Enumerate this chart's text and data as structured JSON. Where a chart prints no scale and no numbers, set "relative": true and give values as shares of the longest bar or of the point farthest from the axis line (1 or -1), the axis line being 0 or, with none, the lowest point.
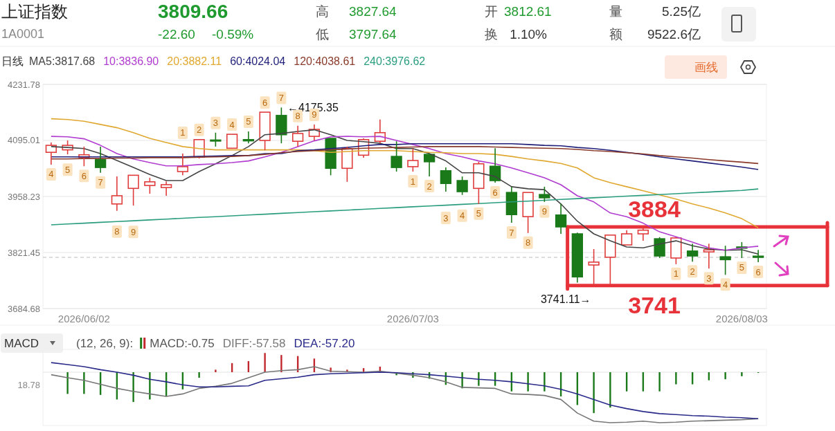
{
  "chart_data": [
    {
      "type": "candlestick",
      "title": "上证指数",
      "subtitle": "1A0001",
      "categories": [
        null,
        null,
        "2026/06/02",
        null,
        null,
        null,
        null,
        null,
        null,
        null,
        null,
        null,
        null,
        null,
        null,
        null,
        null,
        null,
        null,
        null,
        null,
        null,
        "2026/07/03",
        null,
        null,
        null,
        null,
        null,
        null,
        null,
        null,
        null,
        null,
        null,
        null,
        null,
        null,
        null,
        null,
        null,
        null,
        null,
        "2026/08/03",
        null
      ],
      "ohlc": [
        [
          4066,
          4090,
          4036,
          4083
        ],
        [
          4072,
          4095,
          4061,
          4083
        ],
        [
          4053,
          4080,
          4032,
          4060
        ],
        [
          4048,
          4080,
          4016,
          4029
        ],
        [
          3940,
          4007,
          3923,
          3960
        ],
        [
          3978,
          4010,
          3936,
          4010
        ],
        [
          3985,
          4004,
          3965,
          3994
        ],
        [
          3980,
          3995,
          3960,
          3987
        ],
        [
          4019,
          4063,
          4010,
          4031
        ],
        [
          4054,
          4097,
          4051,
          4097
        ],
        [
          4096,
          4114,
          4080,
          4094
        ],
        [
          4076,
          4110,
          4075,
          4110
        ],
        [
          4097,
          4117,
          4088,
          4094
        ],
        [
          4095,
          4164,
          4071,
          4164
        ],
        [
          4156,
          4175.35,
          4088,
          4109
        ],
        [
          4093,
          4131,
          4080,
          4112
        ],
        [
          4105,
          4134,
          4095,
          4122
        ],
        [
          4100,
          4100,
          4010,
          4027
        ],
        [
          4027,
          4080,
          3994,
          4075
        ],
        [
          4059,
          4100,
          4053,
          4097
        ],
        [
          4093,
          4146,
          4088,
          4114
        ],
        [
          4056,
          4093,
          4019,
          4029
        ],
        [
          4031,
          4075,
          4019,
          4046
        ],
        [
          4061,
          4063,
          4007,
          4043
        ],
        [
          4021,
          4029,
          3970,
          3990
        ],
        [
          3997,
          4007,
          3962,
          3970
        ],
        [
          3978,
          4043,
          3940,
          4038
        ],
        [
          4032,
          4076,
          3992,
          3997
        ],
        [
          3968,
          3982,
          3894,
          3914
        ],
        [
          3909,
          3968,
          3869,
          3968
        ],
        [
          3963,
          3982,
          3945,
          3955
        ],
        [
          3913,
          3941,
          3867,
          3884
        ],
        [
          3867,
          3870,
          3748,
          3762
        ],
        [
          3791,
          3830,
          3741.11,
          3798
        ],
        [
          3810,
          3864,
          3744,
          3864
        ],
        [
          3840,
          3876,
          3840,
          3867
        ],
        [
          3867,
          3884,
          3850,
          3876
        ],
        [
          3855,
          3859,
          3808,
          3813
        ],
        [
          3808,
          3859,
          3793,
          3857
        ],
        [
          3825,
          3843,
          3799,
          3813
        ],
        [
          3823,
          3843,
          3782,
          3828
        ],
        [
          3811,
          3838,
          3767,
          3804
        ],
        [
          3835,
          3847,
          3808,
          3832
        ],
        [
          3812.61,
          3827.64,
          3797.64,
          3809.66
        ]
      ],
      "colors": [
        "#e03c3c",
        "#e03c3c",
        "#e03c3c",
        "#1a7a1a",
        "#e03c3c",
        "#e03c3c",
        "#e03c3c",
        "#e03c3c",
        "#e03c3c",
        "#e03c3c",
        "#1a7a1a",
        "#e03c3c",
        "#1a7a1a",
        "#e03c3c",
        "#1a7a1a",
        "#e03c3c",
        "#e03c3c",
        "#1a7a1a",
        "#e03c3c",
        "#e03c3c",
        "#e03c3c",
        "#1a7a1a",
        "#e03c3c",
        "#1a7a1a",
        "#1a7a1a",
        "#1a7a1a",
        "#e03c3c",
        "#1a7a1a",
        "#1a7a1a",
        "#e03c3c",
        "#1a7a1a",
        "#1a7a1a",
        "#1a7a1a",
        "#e03c3c",
        "#e03c3c",
        "#e03c3c",
        "#e03c3c",
        "#1a7a1a",
        "#e03c3c",
        "#1a7a1a",
        "#e03c3c",
        "#1a7a1a",
        "#1a7a1a",
        "#1a7a1a"
      ],
      "value_labels": [
        "4",
        "5",
        "6",
        "7",
        "8",
        "9",
        null,
        null,
        "1",
        "2",
        "3",
        "4",
        "5",
        "6",
        "7",
        "8",
        "9",
        null,
        null,
        null,
        null,
        null,
        "1",
        "2",
        "3",
        "4",
        "5",
        "6",
        "7",
        "8",
        "9",
        null,
        null,
        null,
        null,
        null,
        null,
        null,
        "1",
        "2",
        "3",
        "4",
        "5",
        "6"
      ],
      "series": [
        {
          "name": "MA5:3817.68",
          "type": "line",
          "color": "#444444",
          "values": [
            4080,
            4078,
            4075,
            4063,
            4046,
            4029,
            4012,
            3997,
            3997,
            4019,
            4038,
            4058,
            4080,
            4109,
            4112,
            4117,
            4121,
            4109,
            4095,
            4092,
            4088,
            4075,
            4075,
            4063,
            4045,
            4016,
            4016,
            4007,
            3982,
            3977,
            3975,
            3940,
            3898,
            3867,
            3850,
            3835,
            3833,
            3842,
            3850,
            3838,
            3830,
            3827,
            3828,
            3817.68
          ]
        },
        {
          "name": "10:3836.90",
          "type": "line",
          "color": "#b03cd0",
          "values": [
            4105,
            4104,
            4099,
            4083,
            4063,
            4050,
            4041,
            4033,
            4033,
            4036,
            4038,
            4041,
            4045,
            4055,
            4066,
            4080,
            4094,
            4104,
            4105,
            4104,
            4105,
            4095,
            4085,
            4075,
            4063,
            4055,
            4045,
            4038,
            4028,
            4016,
            4004,
            3987,
            3960,
            3945,
            3918,
            3909,
            3893,
            3872,
            3860,
            3847,
            3833,
            3827,
            3833,
            3836.9
          ]
        },
        {
          "name": "20:3882.11",
          "type": "line",
          "color": "#e0a830",
          "values": [
            4148,
            4146,
            4142,
            4134,
            4126,
            4114,
            4100,
            4090,
            4080,
            4075,
            4072,
            4072,
            4072,
            4072,
            4072,
            4072,
            4070,
            4066,
            4068,
            4070,
            4070,
            4070,
            4068,
            4066,
            4065,
            4063,
            4063,
            4061,
            4056,
            4050,
            4045,
            4039,
            4028,
            4004,
            3992,
            3982,
            3972,
            3962,
            3952,
            3940,
            3930,
            3918,
            3904,
            3882.11
          ]
        },
        {
          "name": "60:4024.04",
          "type": "line",
          "color": "#1f1f7a",
          "values": [
            4055,
            4055,
            4055,
            4055,
            4055,
            4055,
            4055,
            4055,
            4055,
            4056,
            4057,
            4058,
            4058,
            4063,
            4063,
            4070,
            4072,
            4075,
            4078,
            4082,
            4085,
            4085,
            4087,
            4087,
            4087,
            4087,
            4087,
            4087,
            4087,
            4085,
            4083,
            4082,
            4078,
            4075,
            4071,
            4066,
            4061,
            4055,
            4050,
            4045,
            4040,
            4035,
            4030,
            4024.04
          ]
        },
        {
          "name": "120:4038.61",
          "type": "line",
          "color": "#8a3a2a",
          "values": [
            4050,
            4050,
            4051,
            4051,
            4052,
            4052,
            4053,
            4053,
            4053,
            4054,
            4055,
            4056,
            4058,
            4061,
            4065,
            4068,
            4070,
            4072,
            4074,
            4076,
            4077,
            4078,
            4079,
            4080,
            4080,
            4080,
            4080,
            4079,
            4078,
            4077,
            4076,
            4075,
            4073,
            4070,
            4068,
            4065,
            4062,
            4058,
            4055,
            4052,
            4048,
            4045,
            4042,
            4038.61
          ]
        },
        {
          "name": "240:3976.62",
          "type": "line",
          "color": "#2a9d7f",
          "values": [
            3889,
            3891,
            3893,
            3895,
            3897,
            3899,
            3901,
            3903,
            3905,
            3907,
            3909,
            3911,
            3913,
            3915,
            3917,
            3919,
            3921,
            3923,
            3925,
            3927,
            3929,
            3931,
            3933,
            3935,
            3937,
            3939,
            3941,
            3943,
            3945,
            3947,
            3949,
            3951,
            3953,
            3955,
            3957,
            3959,
            3961,
            3963,
            3965,
            3967,
            3969,
            3971,
            3973,
            3976.62
          ]
        }
      ],
      "ylim": [
        3684.68,
        4231.78
      ],
      "yticks": [
        4231.78,
        4095.01,
        3958.23,
        3821.45,
        3684.68
      ],
      "grid": "y",
      "legend": "top",
      "ref_lines": [
        {
          "axis": "y",
          "value": 3809.66,
          "color": "#bbbbbb",
          "line_style": "dashed"
        },
        {
          "axis": "y",
          "value": 3884,
          "label": "3884",
          "color": "#e8323a",
          "line_style": "solid"
        },
        {
          "axis": "y",
          "value": 3741,
          "label": "3741",
          "color": "#e8323a",
          "line_style": "solid"
        }
      ],
      "annotations": [
        "3809.66",
        "-22.60",
        "-0.59%",
        "高",
        "3827.64",
        "低",
        "3797.64",
        "开",
        "3812.61",
        "换",
        "1.10%",
        "量",
        "5.25亿",
        "额",
        "9522.6亿",
        "日线",
        "画线",
        "←4175.35",
        {
          "text": "3741.11→",
          "y": 3741.11
        }
      ]
    },
    {
      "type": "bar",
      "title": "MACD",
      "subtitle": "(12, 26, 9):",
      "relative": true,
      "legend": "top",
      "categories": [
        null,
        null,
        null,
        null,
        null,
        null,
        null,
        null,
        null,
        null,
        null,
        null,
        null,
        null,
        null,
        null,
        null,
        null,
        null,
        null,
        null,
        null,
        null,
        null,
        null,
        null,
        null,
        null,
        null,
        null,
        null,
        null,
        null,
        null,
        null,
        null,
        null,
        null,
        null,
        null,
        null,
        null,
        null,
        null
      ],
      "series": [
        {
          "name": "MACD:-0.75",
          "type": "bar",
          "colors": [
            "#1a7a1a",
            "#1a7a1a",
            "#1a7a1a",
            "#1a7a1a",
            "#1a7a1a",
            "#1a7a1a",
            "#1a7a1a",
            "#1a7a1a",
            "#1a7a1a",
            "#1a7a1a",
            "#c0282d",
            "#c0282d",
            "#c0282d",
            "#c0282d",
            "#c0282d",
            "#c0282d",
            "#c0282d",
            "#c0282d",
            "#c0282d",
            "#c0282d",
            "#c0282d",
            "#1a7a1a",
            "#1a7a1a",
            "#1a7a1a",
            "#1a7a1a",
            "#1a7a1a",
            "#1a7a1a",
            "#1a7a1a",
            "#1a7a1a",
            "#1a7a1a",
            "#1a7a1a",
            "#1a7a1a",
            "#1a7a1a",
            "#1a7a1a",
            "#1a7a1a",
            "#1a7a1a",
            "#1a7a1a",
            "#1a7a1a",
            "#1a7a1a",
            "#1a7a1a",
            "#1a7a1a",
            "#1a7a1a",
            "#1a7a1a",
            "#1a7a1a"
          ],
          "values": [
            null,
            -0.43,
            -0.43,
            -0.45,
            -0.54,
            -0.59,
            -0.54,
            -0.48,
            -0.34,
            -0.11,
            0.05,
            0.18,
            0.22,
            0.38,
            0.34,
            0.32,
            0.27,
            0.09,
            0.05,
            0.08,
            0.11,
            -0.06,
            -0.11,
            -0.13,
            -0.25,
            -0.32,
            -0.27,
            -0.27,
            -0.38,
            -0.38,
            -0.38,
            -0.48,
            -0.65,
            -0.81,
            -0.7,
            -0.38,
            -0.38,
            -0.38,
            -0.24,
            -0.24,
            -0.16,
            -0.14,
            -0.08,
            -0.01
          ]
        },
        {
          "name": "DIFF:-57.58",
          "type": "line",
          "color": "#777777",
          "values": [
            -0.05,
            -0.11,
            -0.16,
            -0.24,
            -0.32,
            -0.38,
            -0.43,
            -0.48,
            -0.43,
            -0.32,
            -0.28,
            -0.22,
            -0.11,
            0,
            0.03,
            0.05,
            0.11,
            0.02,
            0.01,
            0,
            0.02,
            -0.02,
            -0.06,
            -0.11,
            -0.19,
            -0.3,
            -0.31,
            -0.32,
            -0.43,
            -0.44,
            -0.46,
            -0.54,
            -0.81,
            -0.97,
            -1,
            -0.99,
            -0.97,
            -1,
            -0.99,
            -0.97,
            -0.96,
            -0.95,
            -0.94,
            -0.92
          ]
        },
        {
          "name": "DEA:-57.20",
          "type": "line",
          "color": "#2a2a8a",
          "values": [
            0.19,
            0.15,
            0.11,
            0.05,
            0,
            -0.06,
            -0.14,
            -0.19,
            -0.25,
            -0.29,
            -0.29,
            -0.28,
            -0.27,
            -0.16,
            -0.13,
            -0.1,
            -0.05,
            -0.03,
            -0.02,
            -0.01,
            0,
            -0.01,
            -0.03,
            -0.05,
            -0.08,
            -0.11,
            -0.14,
            -0.16,
            -0.19,
            -0.23,
            -0.27,
            -0.34,
            -0.43,
            -0.54,
            -0.65,
            -0.72,
            -0.78,
            -0.82,
            -0.84,
            -0.86,
            -0.87,
            -0.89,
            -0.9,
            -0.92
          ]
        }
      ],
      "annotations": [
        "18.78"
      ]
    }
  ]
}
